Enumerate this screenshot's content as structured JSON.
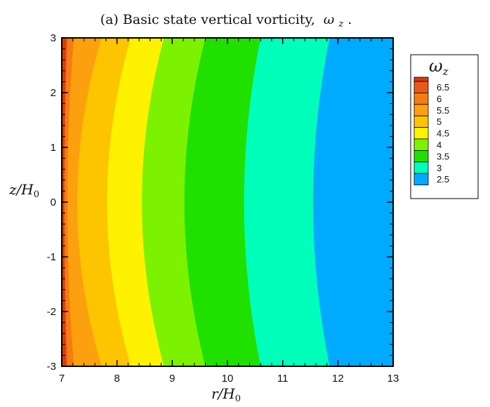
{
  "chart_data": {
    "type": "heatmap",
    "title_prefix": "(a) Basic state vertical vorticity,",
    "title_symbol": "ω",
    "title_subscript": "z",
    "title_suffix": ".",
    "xlabel": {
      "main": "r/H",
      "sub": "0"
    },
    "ylabel": {
      "main": "z/H",
      "sub": "0"
    },
    "xlim": [
      7,
      13
    ],
    "ylim": [
      -3,
      3
    ],
    "x_ticks": [
      "7",
      "8",
      "9",
      "10",
      "11",
      "12",
      "13"
    ],
    "y_ticks": [
      "-3",
      "-2",
      "-1",
      "0",
      "1",
      "2",
      "3"
    ],
    "grid": false,
    "legend": {
      "position": "right",
      "title_symbol": "ω",
      "title_subscript": "z",
      "levels": [
        "6.5",
        "6",
        "5.5",
        "5",
        "4.5",
        "4",
        "3.5",
        "3",
        "2.5"
      ],
      "colors": [
        "#e8591a",
        "#f57c10",
        "#fca00f",
        "#fdc400",
        "#fff200",
        "#7cf200",
        "#20e000",
        "#00ffba",
        "#00aaff"
      ]
    },
    "top_color": "#dc3a0a",
    "contour_boundaries": [
      {
        "value": 6.5,
        "r_mid": 7.05,
        "r_edge": 7.1
      },
      {
        "value": 6,
        "r_mid": 7.1,
        "r_edge": 7.22
      },
      {
        "value": 5.5,
        "r_mid": 7.28,
        "r_edge": 7.72
      },
      {
        "value": 5,
        "r_mid": 7.82,
        "r_edge": 8.25
      },
      {
        "value": 4.5,
        "r_mid": 8.45,
        "r_edge": 8.85
      },
      {
        "value": 4,
        "r_mid": 9.22,
        "r_edge": 9.6
      },
      {
        "value": 3.5,
        "r_mid": 10.3,
        "r_edge": 10.6
      },
      {
        "value": 3,
        "r_mid": 11.55,
        "r_edge": 11.85
      }
    ]
  }
}
